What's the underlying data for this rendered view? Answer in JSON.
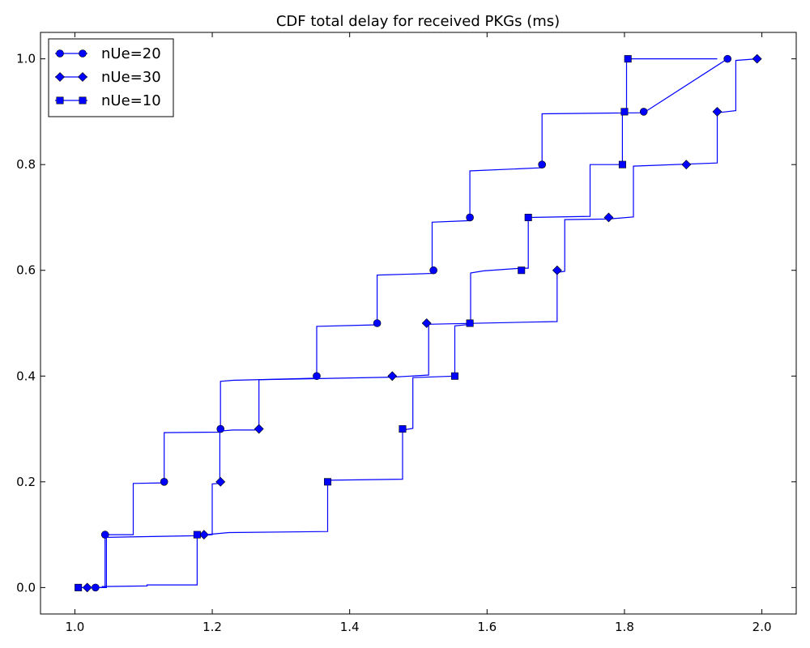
{
  "chart_data": {
    "type": "line",
    "title": "CDF total delay for received PKGs (ms)",
    "xlabel": "",
    "ylabel": "",
    "xlim": [
      0.95,
      2.05
    ],
    "ylim": [
      -0.05,
      1.05
    ],
    "xticks": [
      1.0,
      1.2,
      1.4,
      1.6,
      1.8,
      2.0
    ],
    "xtick_labels": [
      "1.0",
      "1.2",
      "1.4",
      "1.6",
      "1.8",
      "2.0"
    ],
    "yticks": [
      0.0,
      0.2,
      0.4,
      0.6,
      0.8,
      1.0
    ],
    "ytick_labels": [
      "0.0",
      "0.2",
      "0.4",
      "0.6",
      "0.8",
      "1.0"
    ],
    "grid": false,
    "legend_position": "top-left",
    "color": "#0000ff",
    "series": [
      {
        "name": "nUe=20",
        "marker": "circle",
        "steps": [
          [
            1.03,
            0.0
          ],
          [
            1.044,
            0.0
          ],
          [
            1.044,
            0.1
          ],
          [
            1.085,
            0.1
          ],
          [
            1.085,
            0.197
          ],
          [
            1.13,
            0.198
          ],
          [
            1.13,
            0.293
          ],
          [
            1.212,
            0.294
          ],
          [
            1.212,
            0.39
          ],
          [
            1.23,
            0.392
          ],
          [
            1.352,
            0.396
          ],
          [
            1.352,
            0.494
          ],
          [
            1.44,
            0.497
          ],
          [
            1.44,
            0.591
          ],
          [
            1.52,
            0.594
          ],
          [
            1.52,
            0.691
          ],
          [
            1.575,
            0.694
          ],
          [
            1.575,
            0.788
          ],
          [
            1.68,
            0.794
          ],
          [
            1.68,
            0.896
          ],
          [
            1.828,
            0.898
          ],
          [
            1.95,
            1.0
          ],
          [
            1.95,
            1.0
          ]
        ],
        "markers": [
          [
            1.03,
            0.0
          ],
          [
            1.044,
            0.1
          ],
          [
            1.13,
            0.2
          ],
          [
            1.212,
            0.3
          ],
          [
            1.352,
            0.4
          ],
          [
            1.44,
            0.5
          ],
          [
            1.522,
            0.6
          ],
          [
            1.575,
            0.7
          ],
          [
            1.68,
            0.8
          ],
          [
            1.828,
            0.9
          ],
          [
            1.95,
            1.0
          ]
        ]
      },
      {
        "name": "nUe=30",
        "marker": "diamond",
        "steps": [
          [
            1.018,
            0.0
          ],
          [
            1.04,
            0.0
          ],
          [
            1.04,
            0.002
          ],
          [
            1.105,
            0.003
          ],
          [
            1.105,
            0.005
          ],
          [
            1.178,
            0.005
          ],
          [
            1.178,
            0.098
          ],
          [
            1.2,
            0.1
          ],
          [
            1.2,
            0.196
          ],
          [
            1.211,
            0.197
          ],
          [
            1.211,
            0.296
          ],
          [
            1.23,
            0.298
          ],
          [
            1.268,
            0.298
          ],
          [
            1.268,
            0.393
          ],
          [
            1.462,
            0.398
          ],
          [
            1.515,
            0.402
          ],
          [
            1.515,
            0.498
          ],
          [
            1.66,
            0.502
          ],
          [
            1.702,
            0.503
          ],
          [
            1.702,
            0.596
          ],
          [
            1.713,
            0.598
          ],
          [
            1.713,
            0.696
          ],
          [
            1.777,
            0.697
          ],
          [
            1.813,
            0.701
          ],
          [
            1.813,
            0.797
          ],
          [
            1.935,
            0.803
          ],
          [
            1.935,
            0.898
          ],
          [
            1.962,
            0.902
          ],
          [
            1.962,
            0.997
          ],
          [
            1.993,
            1.0
          ]
        ],
        "markers": [
          [
            1.018,
            0.0
          ],
          [
            1.188,
            0.1
          ],
          [
            1.212,
            0.2
          ],
          [
            1.268,
            0.3
          ],
          [
            1.462,
            0.4
          ],
          [
            1.512,
            0.5
          ],
          [
            1.702,
            0.6
          ],
          [
            1.777,
            0.7
          ],
          [
            1.89,
            0.8
          ],
          [
            1.935,
            0.9
          ],
          [
            1.993,
            1.0
          ]
        ]
      },
      {
        "name": "nUe=10",
        "marker": "square",
        "steps": [
          [
            1.005,
            0.0
          ],
          [
            1.046,
            0.0
          ],
          [
            1.046,
            0.095
          ],
          [
            1.178,
            0.098
          ],
          [
            1.178,
            0.098
          ],
          [
            1.2,
            0.101
          ],
          [
            1.224,
            0.104
          ],
          [
            1.368,
            0.106
          ],
          [
            1.368,
            0.203
          ],
          [
            1.477,
            0.205
          ],
          [
            1.477,
            0.298
          ],
          [
            1.492,
            0.301
          ],
          [
            1.492,
            0.397
          ],
          [
            1.553,
            0.4
          ],
          [
            1.553,
            0.495
          ],
          [
            1.576,
            0.498
          ],
          [
            1.576,
            0.595
          ],
          [
            1.595,
            0.599
          ],
          [
            1.65,
            0.604
          ],
          [
            1.66,
            0.604
          ],
          [
            1.66,
            0.7
          ],
          [
            1.75,
            0.702
          ],
          [
            1.75,
            0.8
          ],
          [
            1.797,
            0.8
          ],
          [
            1.797,
            0.9
          ],
          [
            1.803,
            0.9
          ],
          [
            1.803,
            1.0
          ],
          [
            1.935,
            1.0
          ]
        ],
        "markers": [
          [
            1.005,
            0.0
          ],
          [
            1.178,
            0.1
          ],
          [
            1.368,
            0.2
          ],
          [
            1.477,
            0.3
          ],
          [
            1.553,
            0.4
          ],
          [
            1.575,
            0.5
          ],
          [
            1.65,
            0.6
          ],
          [
            1.66,
            0.7
          ],
          [
            1.797,
            0.8
          ],
          [
            1.8,
            0.9
          ],
          [
            1.805,
            1.0
          ]
        ]
      }
    ]
  }
}
